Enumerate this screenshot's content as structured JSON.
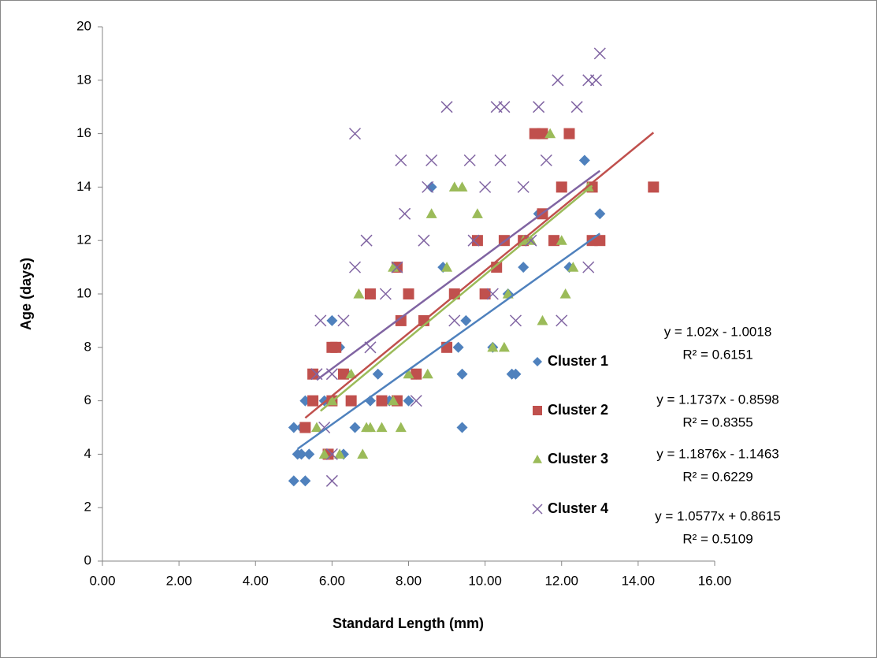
{
  "chart_data": {
    "type": "scatter",
    "x_label": "Standard Length (mm)",
    "y_label": "Age (days)",
    "xlim": [
      0,
      16
    ],
    "ylim": [
      0,
      20
    ],
    "xticks": [
      {
        "value": 0,
        "label": "0.00"
      },
      {
        "value": 2,
        "label": "2.00"
      },
      {
        "value": 4,
        "label": "4.00"
      },
      {
        "value": 6,
        "label": "6.00"
      },
      {
        "value": 8,
        "label": "8.00"
      },
      {
        "value": 10,
        "label": "10.00"
      },
      {
        "value": 12,
        "label": "12.00"
      },
      {
        "value": 14,
        "label": "14.00"
      },
      {
        "value": 16,
        "label": "16.00"
      }
    ],
    "yticks": [
      0,
      2,
      4,
      6,
      8,
      10,
      12,
      14,
      16,
      18,
      20
    ],
    "grid": false,
    "series": [
      {
        "name": "Cluster 1",
        "color": "#4f81bd",
        "marker": "diamond",
        "x": [
          5.0,
          5.3,
          5.1,
          5.2,
          5.4,
          5.0,
          5.2,
          5.3,
          6.0,
          6.3,
          6.6,
          7.0,
          7.5,
          8.0,
          7.2,
          8.2,
          8.6,
          8.9,
          9.3,
          9.4,
          9.4,
          9.5,
          10.2,
          10.6,
          10.7,
          10.8,
          11.0,
          11.4,
          12.2,
          12.6,
          13.0,
          6.2,
          5.8,
          6.4
        ],
        "values": [
          3,
          3,
          4,
          4,
          4,
          5,
          5,
          6,
          9,
          4,
          5,
          6,
          6,
          6,
          7,
          7,
          14,
          11,
          8,
          7,
          5,
          9,
          8,
          10,
          7,
          7,
          11,
          13,
          11,
          15,
          13,
          8,
          6,
          7
        ],
        "trendline": {
          "x": [
            5.1,
            13.0
          ],
          "y": [
            4.2,
            12.26
          ]
        },
        "equation": "y = 1.02x - 1.0018",
        "r2": "R² = 0.6151"
      },
      {
        "name": "Cluster 2",
        "color": "#c0504d",
        "marker": "square",
        "x": [
          5.3,
          5.5,
          5.5,
          5.9,
          6.0,
          6.1,
          6.0,
          6.5,
          7.0,
          7.3,
          7.7,
          7.8,
          7.7,
          8.2,
          8.4,
          9.0,
          9.2,
          9.8,
          10.0,
          10.3,
          10.5,
          11.0,
          11.3,
          11.5,
          11.5,
          12.2,
          11.8,
          12.0,
          12.8,
          13.0,
          12.8,
          14.4,
          6.3,
          8.0
        ],
        "values": [
          5,
          7,
          6,
          4,
          8,
          8,
          6,
          6,
          10,
          6,
          6,
          9,
          11,
          7,
          9,
          8,
          10,
          12,
          10,
          11,
          12,
          12,
          16,
          13,
          16,
          16,
          12,
          14,
          12,
          12,
          14,
          14,
          7,
          10
        ],
        "trendline": {
          "x": [
            5.3,
            14.4
          ],
          "y": [
            5.36,
            16.04
          ]
        },
        "equation": "y = 1.1737x - 0.8598",
        "r2": "R² = 0.8355"
      },
      {
        "name": "Cluster 3",
        "color": "#9bbb59",
        "marker": "triangle",
        "x": [
          5.6,
          5.8,
          6.0,
          6.2,
          6.5,
          6.8,
          6.9,
          7.0,
          7.3,
          7.6,
          7.8,
          8.0,
          8.5,
          8.6,
          9.2,
          9.4,
          9.0,
          9.8,
          10.2,
          10.5,
          10.6,
          11.0,
          11.2,
          11.5,
          11.7,
          12.0,
          12.1,
          12.3,
          12.7,
          6.7,
          7.6
        ],
        "values": [
          5,
          4,
          6,
          4,
          7,
          4,
          5,
          5,
          5,
          6,
          5,
          7,
          7,
          13,
          14,
          14,
          11,
          13,
          8,
          8,
          10,
          12,
          12,
          9,
          16,
          12,
          10,
          11,
          14,
          10,
          11
        ],
        "trendline": {
          "x": [
            5.7,
            12.8
          ],
          "y": [
            5.62,
            14.05
          ]
        },
        "equation": "y = 1.1876x - 1.1463",
        "r2": "R² = 0.6229"
      },
      {
        "name": "Cluster 4",
        "color": "#8064a2",
        "marker": "x",
        "x": [
          6.0,
          6.0,
          5.8,
          5.6,
          5.7,
          6.0,
          6.3,
          6.6,
          6.6,
          6.9,
          7.0,
          7.4,
          7.7,
          7.9,
          7.8,
          8.2,
          8.4,
          8.6,
          8.5,
          9.0,
          9.2,
          9.6,
          9.7,
          10.0,
          10.2,
          10.3,
          10.5,
          10.4,
          10.8,
          11.0,
          11.2,
          11.4,
          11.6,
          11.9,
          12.0,
          12.4,
          12.7,
          12.9,
          13.0,
          12.7
        ],
        "values": [
          3,
          4,
          5,
          7,
          9,
          7,
          9,
          11,
          16,
          12,
          8,
          10,
          11,
          13,
          15,
          6,
          12,
          15,
          14,
          17,
          9,
          15,
          12,
          14,
          10,
          17,
          17,
          15,
          9,
          14,
          12,
          17,
          15,
          18,
          9,
          17,
          18,
          18,
          19,
          11
        ],
        "trendline": {
          "x": [
            5.6,
            13.0
          ],
          "y": [
            6.78,
            14.61
          ]
        },
        "equation": "y = 1.0577x + 0.8615",
        "r2": "R² = 0.5109"
      }
    ]
  }
}
